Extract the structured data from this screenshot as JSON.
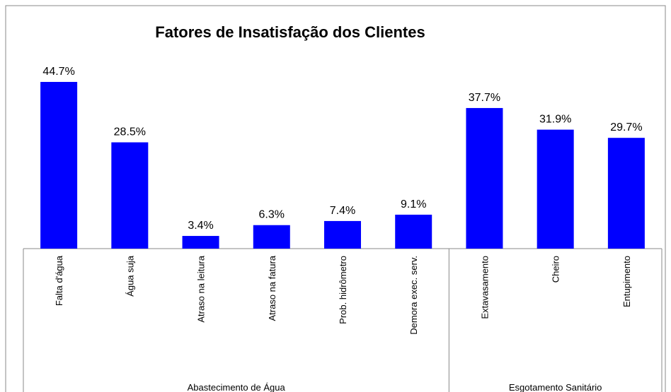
{
  "chart_data": {
    "type": "bar",
    "title": "Fatores de Insatisfação dos Clientes",
    "categories": [
      "Falta d'água",
      "Água suja",
      "Atraso na leitura",
      "Atraso na fatura",
      "Prob. hidrômetro",
      "Demora exec. serv.",
      "Extavasamento",
      "Cheiro",
      "Entupimento"
    ],
    "groups": [
      {
        "name": "Abastecimento de Água",
        "size": 6
      },
      {
        "name": "Esgotamento Sanitário",
        "size": 3
      }
    ],
    "values": [
      44.7,
      28.5,
      3.4,
      6.3,
      7.4,
      9.1,
      37.7,
      31.9,
      29.7
    ],
    "value_labels": [
      "44.7%",
      "28.5%",
      "3.4%",
      "6.3%",
      "7.4%",
      "9.1%",
      "37.7%",
      "31.9%",
      "29.7%"
    ],
    "color": "#0000ff",
    "ylim": [
      0,
      50
    ]
  }
}
